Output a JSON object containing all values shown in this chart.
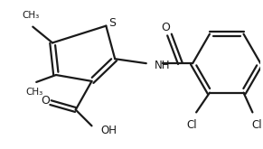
{
  "bg_color": "#ffffff",
  "line_color": "#1a1a1a",
  "line_width": 1.6,
  "figsize": [
    2.91,
    1.65
  ],
  "dpi": 100,
  "xlim": [
    0,
    291
  ],
  "ylim": [
    0,
    165
  ]
}
